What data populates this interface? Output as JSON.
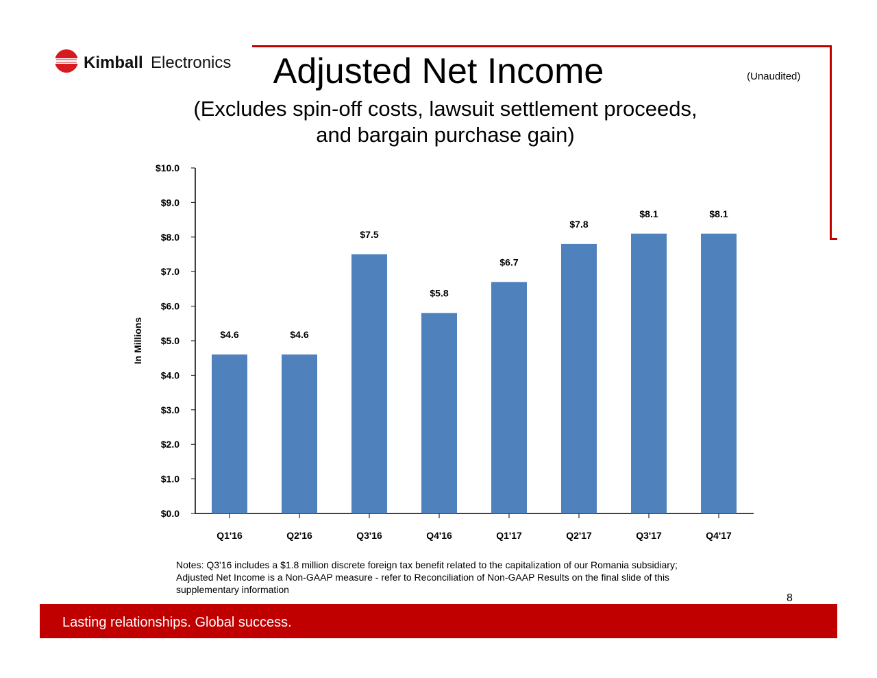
{
  "logo": {
    "text": "Kimball Electronics",
    "color": "#d71920"
  },
  "header": {
    "title": "Adjusted Net Income",
    "unaudited": "(Unaudited)",
    "subtitle_line1": "(Excludes spin-off costs, lawsuit settlement proceeds,",
    "subtitle_line2": "and bargain purchase gain)"
  },
  "chart_data": {
    "type": "bar",
    "ylabel": "In Millions",
    "ylim": [
      0,
      10
    ],
    "yticks": [
      "$0.0",
      "$1.0",
      "$2.0",
      "$3.0",
      "$4.0",
      "$5.0",
      "$6.0",
      "$7.0",
      "$8.0",
      "$9.0",
      "$10.0"
    ],
    "categories": [
      "Q1'16",
      "Q2'16",
      "Q3'16",
      "Q4'16",
      "Q1'17",
      "Q2'17",
      "Q3'17",
      "Q4'17"
    ],
    "values": [
      4.6,
      4.6,
      7.5,
      5.8,
      6.7,
      7.8,
      8.1,
      8.1
    ],
    "data_labels": [
      "$4.6",
      "$4.6",
      "$7.5",
      "$5.8",
      "$6.7",
      "$7.8",
      "$8.1",
      "$8.1"
    ],
    "bar_color": "#4f81bd",
    "grid": false
  },
  "notes": {
    "line1": "Notes:  Q3'16 includes a $1.8 million discrete foreign tax benefit related to the capitalization of our Romania subsidiary;",
    "line2": "Adjusted Net Income is a Non-GAAP measure - refer to Reconciliation of Non-GAAP Results on the final slide of this",
    "line3": "supplementary information"
  },
  "page_number": "8",
  "footer": {
    "tagline": "Lasting relationships. Global success.",
    "color": "#c00000"
  }
}
